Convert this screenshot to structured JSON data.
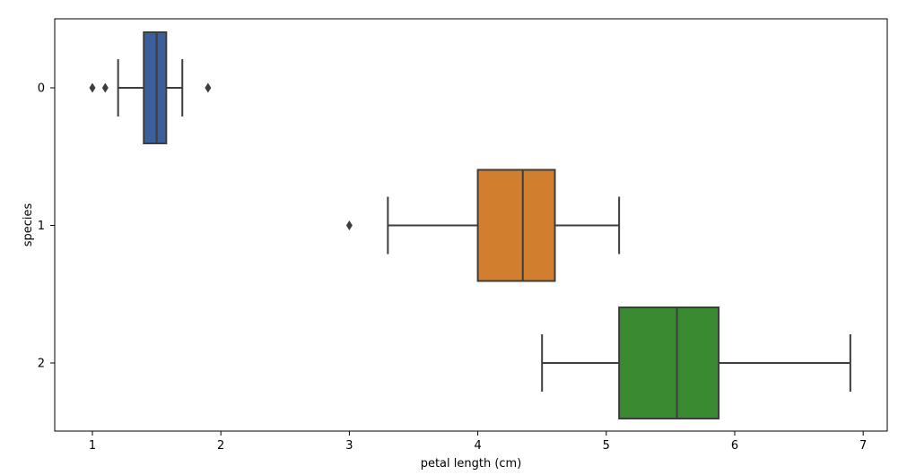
{
  "chart_data": {
    "type": "box",
    "orientation": "horizontal",
    "xlabel": "petal length (cm)",
    "ylabel": "species",
    "xlim": [
      0.71,
      7.2
    ],
    "x_ticks": [
      1,
      2,
      3,
      4,
      5,
      6,
      7
    ],
    "categories": [
      "0",
      "1",
      "2"
    ],
    "grid": false,
    "boxes": [
      {
        "category": "0",
        "color": "#3a5f9a",
        "whisker_low": 1.2,
        "q1": 1.4,
        "median": 1.5,
        "q3": 1.575,
        "whisker_high": 1.7,
        "outliers": [
          1.0,
          1.1,
          1.9
        ]
      },
      {
        "category": "1",
        "color": "#d17f2e",
        "whisker_low": 3.3,
        "q1": 4.0,
        "median": 4.35,
        "q3": 4.6,
        "whisker_high": 5.1,
        "outliers": [
          3.0
        ]
      },
      {
        "category": "2",
        "color": "#3a8a32",
        "whisker_low": 4.5,
        "q1": 5.1,
        "median": 5.55,
        "q3": 5.875,
        "whisker_high": 6.9,
        "outliers": []
      }
    ]
  }
}
